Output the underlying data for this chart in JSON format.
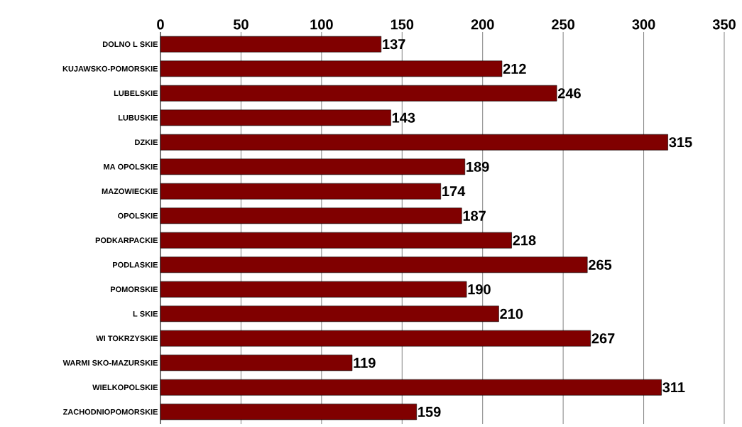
{
  "chart_data": {
    "type": "bar",
    "orientation": "horizontal",
    "categories": [
      "DOLNO L SKIE",
      "KUJAWSKO-POMORSKIE",
      "LUBELSKIE",
      "LUBUSKIE",
      "DZKIE",
      "MA OPOLSKIE",
      "MAZOWIECKIE",
      "OPOLSKIE",
      "PODKARPACKIE",
      "PODLASKIE",
      "POMORSKIE",
      "L SKIE",
      "WI TOKRZYSKIE",
      "WARMI SKO-MAZURSKIE",
      "WIELKOPOLSKIE",
      "ZACHODNIOPOMORSKIE"
    ],
    "values": [
      137,
      212,
      246,
      143,
      315,
      189,
      174,
      187,
      218,
      265,
      190,
      210,
      267,
      119,
      311,
      159
    ],
    "color": "#800000",
    "xlim": [
      0,
      350
    ],
    "xticks": [
      0,
      50,
      100,
      150,
      200,
      250,
      300,
      350
    ],
    "grid": "x",
    "data_labels": true
  }
}
